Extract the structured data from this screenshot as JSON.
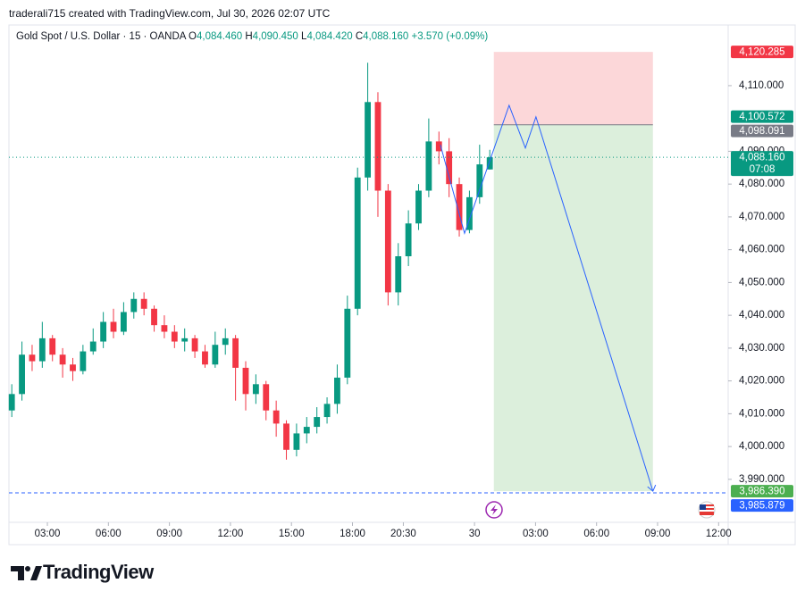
{
  "header": {
    "credit": "traderali715 created with TradingView.com, Jul 30, 2026 02:07 UTC"
  },
  "legend": {
    "symbol": "Gold Spot / U.S. Dollar · 15 · OANDA",
    "open_key": "O",
    "open": "4,084.460",
    "high_key": "H",
    "high": "4,090.450",
    "low_key": "L",
    "low": "4,084.420",
    "close_key": "C",
    "close": "4,088.160",
    "change": "+3.570 (+0.09%)"
  },
  "chart_data": {
    "type": "candlestick",
    "up_color": "#089981",
    "down_color": "#f23645",
    "x": [
      1.25,
      1.75,
      2.25,
      2.75,
      3.25,
      3.75,
      4.25,
      4.75,
      5.25,
      5.75,
      6.25,
      6.75,
      7.25,
      7.75,
      8.25,
      8.75,
      9.25,
      9.75,
      10.25,
      10.75,
      11.25,
      11.75,
      12.25,
      12.75,
      13.25,
      13.75,
      14.25,
      14.75,
      15.25,
      15.75,
      16.25,
      16.75,
      17.25,
      17.75,
      18.25,
      18.75,
      19.25,
      19.75,
      20.25,
      20.75,
      21.25,
      21.75,
      22.25,
      22.75,
      23.25,
      23.75,
      24.25,
      24.75
    ],
    "open": [
      4011,
      4016,
      4028,
      4026,
      4033,
      4028,
      4025,
      4023,
      4029,
      4032,
      4038,
      4035,
      4041,
      4045,
      4042,
      4037,
      4035,
      4032,
      4033,
      4029,
      4025,
      4031,
      4033,
      4024,
      4016,
      4019,
      4011,
      4007,
      3999,
      4004,
      4006,
      4009,
      4013,
      4021,
      4042,
      4082,
      4105,
      4078,
      4047,
      4058,
      4068,
      4078,
      4093,
      4090,
      4080,
      4066,
      4076,
      4084.46
    ],
    "high": [
      4019,
      4032,
      4031,
      4038,
      4034,
      4030,
      4027,
      4031,
      4036,
      4041,
      4042,
      4044,
      4047,
      4047,
      4043,
      4040,
      4037,
      4036,
      4034,
      4031,
      4035,
      4036,
      4034,
      4026,
      4022,
      4020,
      4014,
      4008,
      4007,
      4009,
      4012,
      4015,
      4025,
      4046,
      4085,
      4117,
      4108,
      4080,
      4062,
      4072,
      4080,
      4100,
      4096,
      4094,
      4082,
      4078,
      4092,
      4090.45
    ],
    "low": [
      4009,
      4014,
      4023,
      4024,
      4026,
      4021,
      4020,
      4022,
      4028,
      4030,
      4033,
      4034,
      4039,
      4040,
      4035,
      4033,
      4030,
      4029,
      4027,
      4024,
      4024,
      4028,
      4014,
      4011,
      4013,
      4008,
      4003,
      3996,
      3997,
      4001,
      4004,
      4007,
      4010,
      4019,
      4040,
      4078,
      4070,
      4043,
      4043,
      4055,
      4066,
      4076,
      4086,
      4076,
      4064,
      4065,
      4074,
      4084.42
    ],
    "close": [
      4016,
      4028,
      4026,
      4033,
      4028,
      4025,
      4023,
      4029,
      4032,
      4038,
      4035,
      4041,
      4045,
      4042,
      4037,
      4035,
      4032,
      4033,
      4029,
      4025,
      4031,
      4033,
      4024,
      4016,
      4019,
      4011,
      4007,
      3999,
      4004,
      4006,
      4009,
      4013,
      4021,
      4042,
      4082,
      4105,
      4078,
      4047,
      4058,
      4068,
      4078,
      4093,
      4090,
      4080,
      4066,
      4076,
      4086,
      4088.16
    ],
    "xlim": [
      1.11,
      36.47
    ],
    "xticks": [
      {
        "value": 3,
        "label": "03:00"
      },
      {
        "value": 6,
        "label": "06:00"
      },
      {
        "value": 9,
        "label": "09:00"
      },
      {
        "value": 12,
        "label": "12:00"
      },
      {
        "value": 15,
        "label": "15:00"
      },
      {
        "value": 18,
        "label": "18:00"
      },
      {
        "value": 20.5,
        "label": "20:30"
      },
      {
        "value": 24,
        "label": "30"
      },
      {
        "value": 27,
        "label": "03:00"
      },
      {
        "value": 30,
        "label": "06:00"
      },
      {
        "value": 33,
        "label": "09:00"
      },
      {
        "value": 36,
        "label": "12:00"
      }
    ],
    "ylim": [
      3976.9,
      4122.5
    ],
    "yticks": [
      {
        "value": 3990,
        "label": "3,990.000"
      },
      {
        "value": 4000,
        "label": "4,000.000"
      },
      {
        "value": 4010,
        "label": "4,010.000"
      },
      {
        "value": 4020,
        "label": "4,020.000"
      },
      {
        "value": 4030,
        "label": "4,030.000"
      },
      {
        "value": 4040,
        "label": "4,040.000"
      },
      {
        "value": 4050,
        "label": "4,050.000"
      },
      {
        "value": 4060,
        "label": "4,060.000"
      },
      {
        "value": 4070,
        "label": "4,070.000"
      },
      {
        "value": 4080,
        "label": "4,080.000"
      },
      {
        "value": 4090,
        "label": "4,090.000"
      },
      {
        "value": 4110,
        "label": "4,110.000"
      }
    ],
    "position": {
      "x": [
        24.95,
        32.77
      ],
      "entry": 4098.091,
      "stop": 4120.285,
      "target": 3986.39,
      "stop_color": "#fcd7d9",
      "target_color": "#dcefdc"
    },
    "projection": {
      "color": "#2962ff",
      "x": [
        22.32,
        23.51,
        25.7,
        26.5,
        27.02,
        32.77
      ],
      "values": [
        4092,
        4065,
        4104,
        4091,
        4100.5,
        3986.4
      ]
    },
    "price_labels": [
      {
        "value": 4120.285,
        "label": "4,120.285",
        "color": "#f23645"
      },
      {
        "value": 4100.572,
        "label": "4,100.572",
        "color": "#089981"
      },
      {
        "value": 4098.091,
        "label": "4,098.091",
        "color": "#787b86"
      },
      {
        "value": 4088.16,
        "label": "4,088.160",
        "sublabel": "07:08",
        "color": "#089981"
      },
      {
        "value": 3986.39,
        "label": "3,986.390",
        "color": "#4caf50"
      },
      {
        "value": 3985.879,
        "label": "3,985.879",
        "color": "#2962ff"
      }
    ]
  },
  "footer": {
    "brand": "TradingView"
  }
}
